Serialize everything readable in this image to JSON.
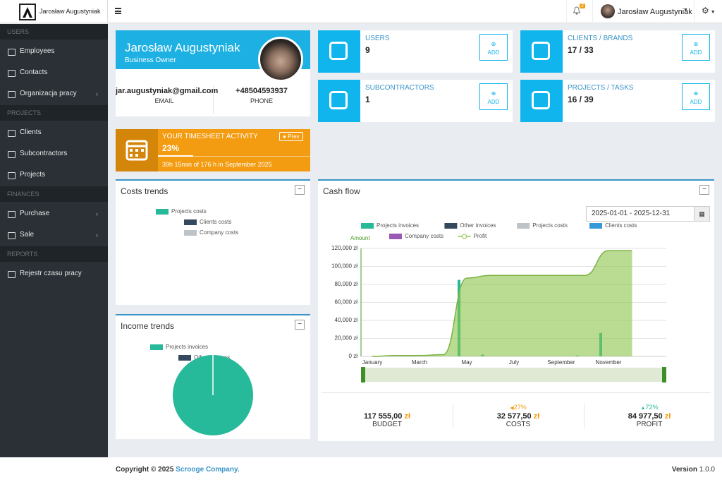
{
  "header": {
    "brand": "Jarosław Augustyniak",
    "notifications": "2",
    "user": "Jarosław Augustyniak"
  },
  "sidebar": [
    {
      "section": "USERS",
      "items": [
        {
          "label": "Employees"
        },
        {
          "label": "Contacts"
        },
        {
          "label": "Organizacja pracy",
          "submenu": true
        }
      ]
    },
    {
      "section": "PROJECTS",
      "items": [
        {
          "label": "Clients"
        },
        {
          "label": "Subcontractors"
        },
        {
          "label": "Projects"
        }
      ]
    },
    {
      "section": "FINANCES",
      "items": [
        {
          "label": "Purchase",
          "submenu": true
        },
        {
          "label": "Sale",
          "submenu": true
        }
      ]
    },
    {
      "section": "REPORTS",
      "items": [
        {
          "label": "Rejestr czasu pracy"
        }
      ]
    }
  ],
  "profile": {
    "name": "Jarosław Augustyniak",
    "role": "Business Owner",
    "email": "jar.augustyniak@gmail.com",
    "email_label": "EMAIL",
    "phone": "+48504593937",
    "phone_label": "PHONE"
  },
  "stats": [
    {
      "title": "USERS",
      "value": "9",
      "button": "ADD"
    },
    {
      "title": "CLIENTS / BRANDS",
      "value": "17 / 33",
      "button": "ADD"
    },
    {
      "title": "SUBCONTRACTORS",
      "value": "1",
      "button": "ADD"
    },
    {
      "title": "PROJECTS / TASKS",
      "value": "16 / 39",
      "button": "ADD"
    }
  ],
  "timesheet": {
    "title": "YOUR TIMESHEET ACTIVITY",
    "button": "Prev",
    "value": 23,
    "value_label": "23%",
    "detail": "39h 15min of 176 h in September 2025"
  },
  "chart_data": [
    {
      "type": "pie",
      "title": "Costs trends",
      "series": [
        {
          "name": "Projects costs",
          "color": "#26b99a"
        },
        {
          "name": "Clients costs",
          "color": "#34495e"
        },
        {
          "name": "Company costs",
          "color": "#bdc3c7"
        }
      ]
    },
    {
      "type": "pie",
      "title": "Income trends",
      "categories": [
        "Projects invoices",
        "Other invoices"
      ],
      "colors": [
        "#26b99a",
        "#34495e"
      ],
      "values": [
        100,
        0
      ]
    },
    {
      "type": "combo",
      "title": "Cash flow",
      "date_range": "2025-01-01 - 2025-12-31",
      "y_label": "Amount",
      "categories": [
        "January",
        null,
        "March",
        null,
        "May",
        null,
        "July",
        null,
        "September",
        null,
        "November",
        null
      ],
      "ylim": [
        0,
        120000
      ],
      "yticks": [
        {
          "value": 0,
          "label": "0 zł"
        },
        {
          "value": 20000,
          "label": "20,000 zł"
        },
        {
          "value": 40000,
          "label": "40,000 zł"
        },
        {
          "value": 60000,
          "label": "60,000 zł"
        },
        {
          "value": 80000,
          "label": "80,000 zł"
        },
        {
          "value": 100000,
          "label": "100,000 zł"
        },
        {
          "value": 120000,
          "label": "120,000 zł"
        }
      ],
      "grid": true,
      "series": [
        {
          "name": "Projects invoices",
          "color": "#26b99a",
          "type": "bar",
          "values": [
            0,
            0,
            0,
            0,
            85000,
            2000,
            0,
            0,
            0,
            1000,
            26000,
            0
          ]
        },
        {
          "name": "Other invoices",
          "color": "#34495e"
        },
        {
          "name": "Projects costs",
          "color": "#bdc3c7"
        },
        {
          "name": "Clients costs",
          "color": "#3498db"
        },
        {
          "name": "Company costs",
          "color": "#9b59b6"
        },
        {
          "name": "Profit",
          "color": "#8bc34a",
          "type": "area",
          "values": [
            0,
            1000,
            1000,
            2000,
            87000,
            90000,
            90000,
            90000,
            90000,
            90000,
            117555,
            117555
          ]
        }
      ]
    }
  ],
  "summary": [
    {
      "amount": "117 555,00",
      "currency": "zł",
      "label": "BUDGET"
    },
    {
      "change": "27%",
      "trend": "down",
      "amount": "32 577,50",
      "currency": "zł",
      "label": "COSTS"
    },
    {
      "change": "72%",
      "trend": "up",
      "amount": "84 977,50",
      "currency": "zł",
      "label": "PROFIT"
    }
  ],
  "footer": {
    "copyright": "Copyright © 2025",
    "company": "Scrooge Company.",
    "version_label": "Version",
    "version": "1.0.0"
  }
}
